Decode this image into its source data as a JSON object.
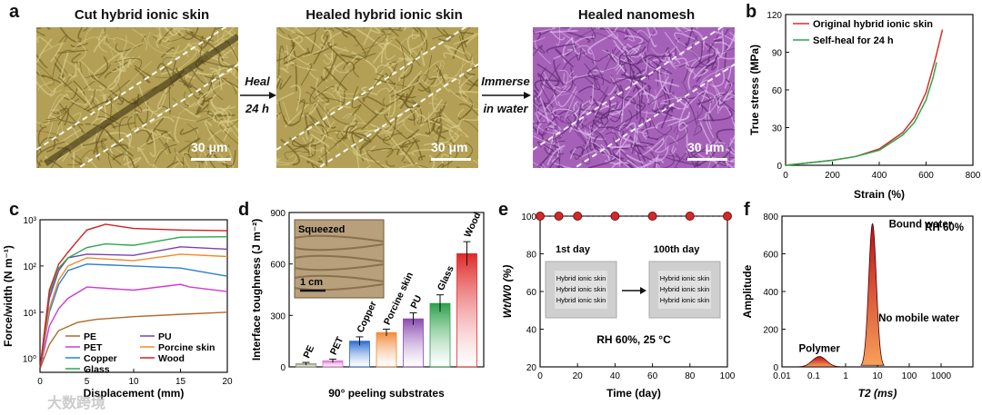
{
  "panel_a": {
    "letter": "a",
    "titles": [
      "Cut hybrid ionic skin",
      "Healed hybrid ionic skin",
      "Healed nanomesh"
    ],
    "arrow1": [
      "Heal",
      "24 h"
    ],
    "arrow2": [
      "Immerse",
      "in water"
    ],
    "scale": "30 μm"
  },
  "colors": {
    "micro_bg": "#b3a056",
    "micro_dark": "#6f5d22",
    "micro_light": "#d8cc8a",
    "nano_bg": "#a561b8",
    "nano_dark": "#5f2a73",
    "nano_light": "#e0b8ee",
    "red": "#e02a2a",
    "green": "#29a84b",
    "black": "#222222",
    "blue": "#2a7fd0",
    "purple": "#7c3fb0",
    "orange": "#f08a2a",
    "brown": "#b06a2a",
    "pink": "#d23ad0",
    "crimson": "#d02020"
  },
  "chart_data": [
    {
      "panel": "b",
      "type": "line",
      "xlabel": "Strain (%)",
      "ylabel": "True stress (MPa)",
      "xlim": [
        0,
        800
      ],
      "ylim": [
        0,
        120
      ],
      "xticks": [
        0,
        200,
        400,
        600,
        800
      ],
      "yticks": [
        0,
        30,
        60,
        90,
        120
      ],
      "series": [
        {
          "name": "Original hybrid ionic skin",
          "x": [
            0,
            100,
            200,
            300,
            400,
            500,
            550,
            600,
            640,
            670
          ],
          "y": [
            0,
            2,
            4,
            7,
            13,
            26,
            38,
            58,
            85,
            108
          ]
        },
        {
          "name": "Self-heal for 24 h",
          "x": [
            0,
            100,
            200,
            300,
            400,
            500,
            550,
            600,
            630,
            645
          ],
          "y": [
            0,
            2,
            4,
            7,
            12,
            24,
            34,
            52,
            70,
            82
          ]
        }
      ]
    },
    {
      "panel": "c",
      "type": "line",
      "xlabel": "Displacement (mm)",
      "ylabel": "Force/width (N m⁻¹)",
      "xlim": [
        0,
        20
      ],
      "ylim_log": [
        0.5,
        1000
      ],
      "xticks": [
        0,
        5,
        10,
        15,
        20
      ],
      "ytick_labels": [
        "10⁰",
        "10¹",
        "10²",
        "10³"
      ],
      "series": [
        {
          "name": "PE",
          "x": [
            0,
            1,
            2,
            4,
            6,
            10,
            15,
            20
          ],
          "y": [
            0.6,
            2,
            4,
            6,
            7,
            8,
            9,
            10
          ]
        },
        {
          "name": "PET",
          "x": [
            0,
            1,
            2,
            3,
            5,
            10,
            15,
            16,
            20
          ],
          "y": [
            0.6,
            5,
            12,
            20,
            35,
            30,
            40,
            35,
            28
          ]
        },
        {
          "name": "Copper",
          "x": [
            0,
            1,
            2,
            3,
            5,
            10,
            15,
            20
          ],
          "y": [
            0.6,
            10,
            40,
            80,
            110,
            100,
            90,
            60
          ]
        },
        {
          "name": "Porcine skin",
          "x": [
            0,
            1,
            2,
            3,
            5,
            10,
            15,
            20
          ],
          "y": [
            0.6,
            12,
            50,
            100,
            150,
            130,
            180,
            160
          ]
        },
        {
          "name": "PU",
          "x": [
            0,
            1,
            2,
            3,
            5,
            10,
            15,
            20
          ],
          "y": [
            0.6,
            20,
            80,
            150,
            180,
            170,
            260,
            230
          ]
        },
        {
          "name": "Glass",
          "x": [
            0,
            1,
            2,
            3,
            5,
            7,
            10,
            15,
            20
          ],
          "y": [
            0.6,
            25,
            90,
            150,
            250,
            300,
            280,
            420,
            430
          ]
        },
        {
          "name": "Wood",
          "x": [
            0,
            1,
            2,
            3,
            4,
            5,
            7,
            10,
            15,
            20
          ],
          "y": [
            0.6,
            30,
            110,
            200,
            350,
            600,
            800,
            650,
            600,
            580
          ]
        }
      ],
      "legend": [
        "PE",
        "PU",
        "PET",
        "Porcine skin",
        "Copper",
        "Wood",
        "Glass"
      ]
    },
    {
      "panel": "d",
      "type": "bar",
      "xlabel": "90° peeling substrates",
      "ylabel": "Interface toughness (J m⁻²)",
      "ylim": [
        0,
        900
      ],
      "yticks": [
        0,
        300,
        600,
        900
      ],
      "categories": [
        "PE",
        "PET",
        "Copper",
        "Porcine skin",
        "PU",
        "Glass",
        "Wood"
      ],
      "values": [
        18,
        35,
        150,
        200,
        280,
        370,
        660
      ],
      "errors": [
        8,
        10,
        25,
        20,
        35,
        50,
        70
      ],
      "inset_label": "Squeezed",
      "inset_scale": "1 cm"
    },
    {
      "panel": "e",
      "type": "scatter",
      "xlabel": "Time (day)",
      "ylabel": "Wt/W0 (%)",
      "xlim": [
        0,
        100
      ],
      "ylim": [
        20,
        100
      ],
      "xticks": [
        0,
        20,
        40,
        60,
        80,
        100
      ],
      "yticks": [
        20,
        40,
        60,
        80,
        100
      ],
      "x": [
        0,
        10,
        20,
        40,
        60,
        80,
        100
      ],
      "y": [
        100,
        100,
        100,
        100,
        100,
        100,
        100
      ],
      "annotations": [
        "1st day",
        "100th day",
        "RH 60%, 25 °C"
      ],
      "sample_text": "Hybrid ionic skin"
    },
    {
      "panel": "f",
      "type": "area",
      "xlabel": "T2 (ms)",
      "ylabel": "Amplitude",
      "xscale": "log",
      "xlim": [
        0.01,
        10000
      ],
      "ylim": [
        0,
        800
      ],
      "xtick_labels": [
        "0.01",
        "0.1",
        "1",
        "10",
        "100",
        "1000"
      ],
      "yticks": [
        0,
        200,
        400,
        600,
        800
      ],
      "peaks": [
        {
          "center": 0.15,
          "height": 55,
          "label": "Polymer"
        },
        {
          "center": 7,
          "height": 760,
          "label": "Bound water"
        }
      ],
      "annotations": [
        "RH 60%",
        "No mobile water"
      ]
    }
  ],
  "panel_letters": {
    "b": "b",
    "c": "c",
    "d": "d",
    "e": "e",
    "f": "f"
  },
  "watermark": "大数跨境"
}
